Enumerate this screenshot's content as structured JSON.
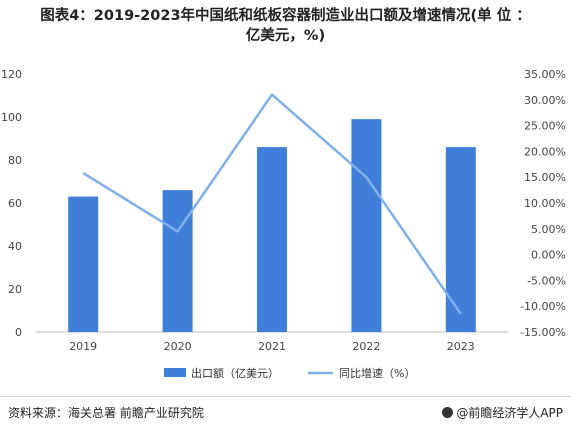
{
  "title_line1": "图表4：2019-2023年中国纸和纸板容器制造业出口额及增速情况(单 位 ：",
  "title_line2": "亿美元，%)",
  "source": "资料来源：海关总署 前瞻产业研究院",
  "brand": "@前瞻经济学人APP",
  "chart_data": {
    "type": "bar",
    "title": "图表4：2019-2023年中国纸和纸板容器制造业出口额及增速情况(单 位 ：亿美元，%)",
    "categories": [
      "2019",
      "2020",
      "2021",
      "2022",
      "2023"
    ],
    "series": [
      {
        "name": "出口额（亿美元）",
        "kind": "bar",
        "axis": "left",
        "color": "#3f7fd9",
        "values": [
          63,
          66,
          86,
          99,
          86
        ]
      },
      {
        "name": "同比增速（%）",
        "kind": "line",
        "axis": "right",
        "color": "#7fb0ea",
        "values": [
          15.8,
          4.5,
          31.0,
          15.0,
          -11.5
        ]
      }
    ],
    "left_axis": {
      "ylim": [
        0,
        120
      ],
      "ticks": [
        "0",
        "20",
        "40",
        "60",
        "80",
        "100",
        "120"
      ]
    },
    "right_axis": {
      "ylim": [
        -15,
        35
      ],
      "ticks": [
        "-15.00%",
        "-10.00%",
        "-5.00%",
        "0.00%",
        "5.00%",
        "10.00%",
        "15.00%",
        "20.00%",
        "25.00%",
        "30.00%",
        "35.00%"
      ]
    },
    "grid": false,
    "legend": "bottom-center"
  }
}
